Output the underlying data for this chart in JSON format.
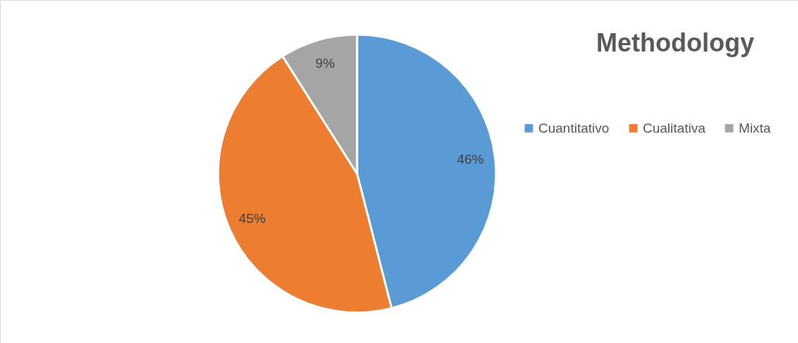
{
  "chart_data": {
    "type": "pie",
    "title": "Methodology",
    "categories": [
      "Cuantitativo",
      "Cualitativa",
      "Mixta"
    ],
    "values": [
      46,
      45,
      9
    ],
    "colors": [
      "#5b9bd5",
      "#ed7d31",
      "#a5a5a5"
    ],
    "value_labels": [
      "46%",
      "45%",
      "9%"
    ],
    "legend": "right"
  }
}
